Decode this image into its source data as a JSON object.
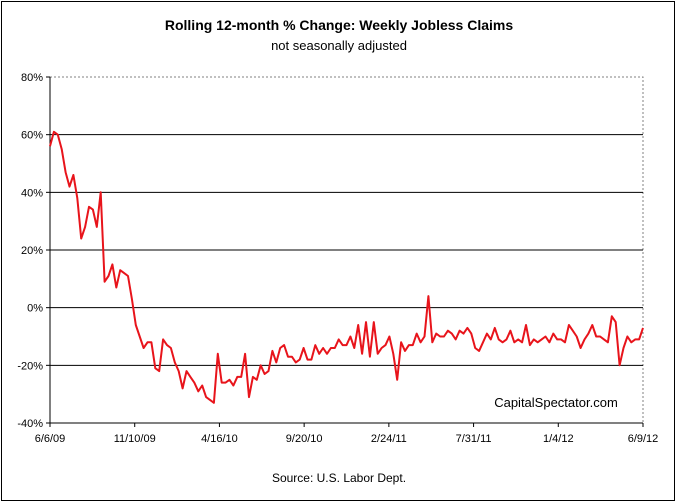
{
  "chart_data": {
    "type": "line",
    "title": "Rolling 12-month %  Change: Weekly Jobless Claims",
    "subtitle": "not seasonally adjusted",
    "source": "Source: U.S. Labor Dept.",
    "watermark": "CapitalSpectator.com",
    "line_color": "#e8141b",
    "grid": true,
    "ylim": [
      -40,
      80
    ],
    "y_ticks": [
      "80%",
      "60%",
      "40%",
      "20%",
      "0%",
      "-20%",
      "-40%"
    ],
    "x_ticks": [
      "6/6/09",
      "11/10/09",
      "4/16/10",
      "9/20/10",
      "2/24/11",
      "7/31/11",
      "1/4/12",
      "6/9/12"
    ],
    "series": [
      {
        "values": [
          56,
          61,
          60,
          55,
          47,
          42,
          46,
          38,
          24,
          28,
          35,
          34,
          28,
          40,
          9,
          11,
          15,
          7,
          13,
          12,
          11,
          3,
          -6,
          -10,
          -14,
          -12,
          -12,
          -21,
          -22,
          -11,
          -13,
          -14,
          -19,
          -22,
          -28,
          -22,
          -24,
          -26,
          -29,
          -27,
          -31,
          -32,
          -33,
          -16,
          -26,
          -26,
          -25,
          -27,
          -24,
          -24,
          -16,
          -31,
          -24,
          -25,
          -20,
          -23,
          -22,
          -15,
          -19,
          -14,
          -13,
          -17,
          -17,
          -19,
          -18,
          -14,
          -18,
          -18,
          -13,
          -16,
          -14,
          -16,
          -14,
          -14,
          -11,
          -13,
          -13,
          -10,
          -14,
          -6,
          -16,
          -5,
          -17,
          -5,
          -16,
          -14,
          -13,
          -10,
          -16,
          -25,
          -12,
          -15,
          -13,
          -13,
          -9,
          -12,
          -10,
          4,
          -12,
          -9,
          -10,
          -10,
          -8,
          -9,
          -11,
          -8,
          -9,
          -7,
          -9,
          -14,
          -15,
          -12,
          -9,
          -11,
          -7,
          -11,
          -12,
          -11,
          -8,
          -12,
          -11,
          -12,
          -6,
          -13,
          -11,
          -12,
          -11,
          -10,
          -12,
          -9,
          -11,
          -11,
          -12,
          -6,
          -8,
          -10,
          -14,
          -11,
          -9,
          -6,
          -10,
          -10,
          -11,
          -12,
          -3,
          -5,
          -20,
          -14,
          -10,
          -12,
          -11,
          -11,
          -7
        ]
      }
    ]
  }
}
